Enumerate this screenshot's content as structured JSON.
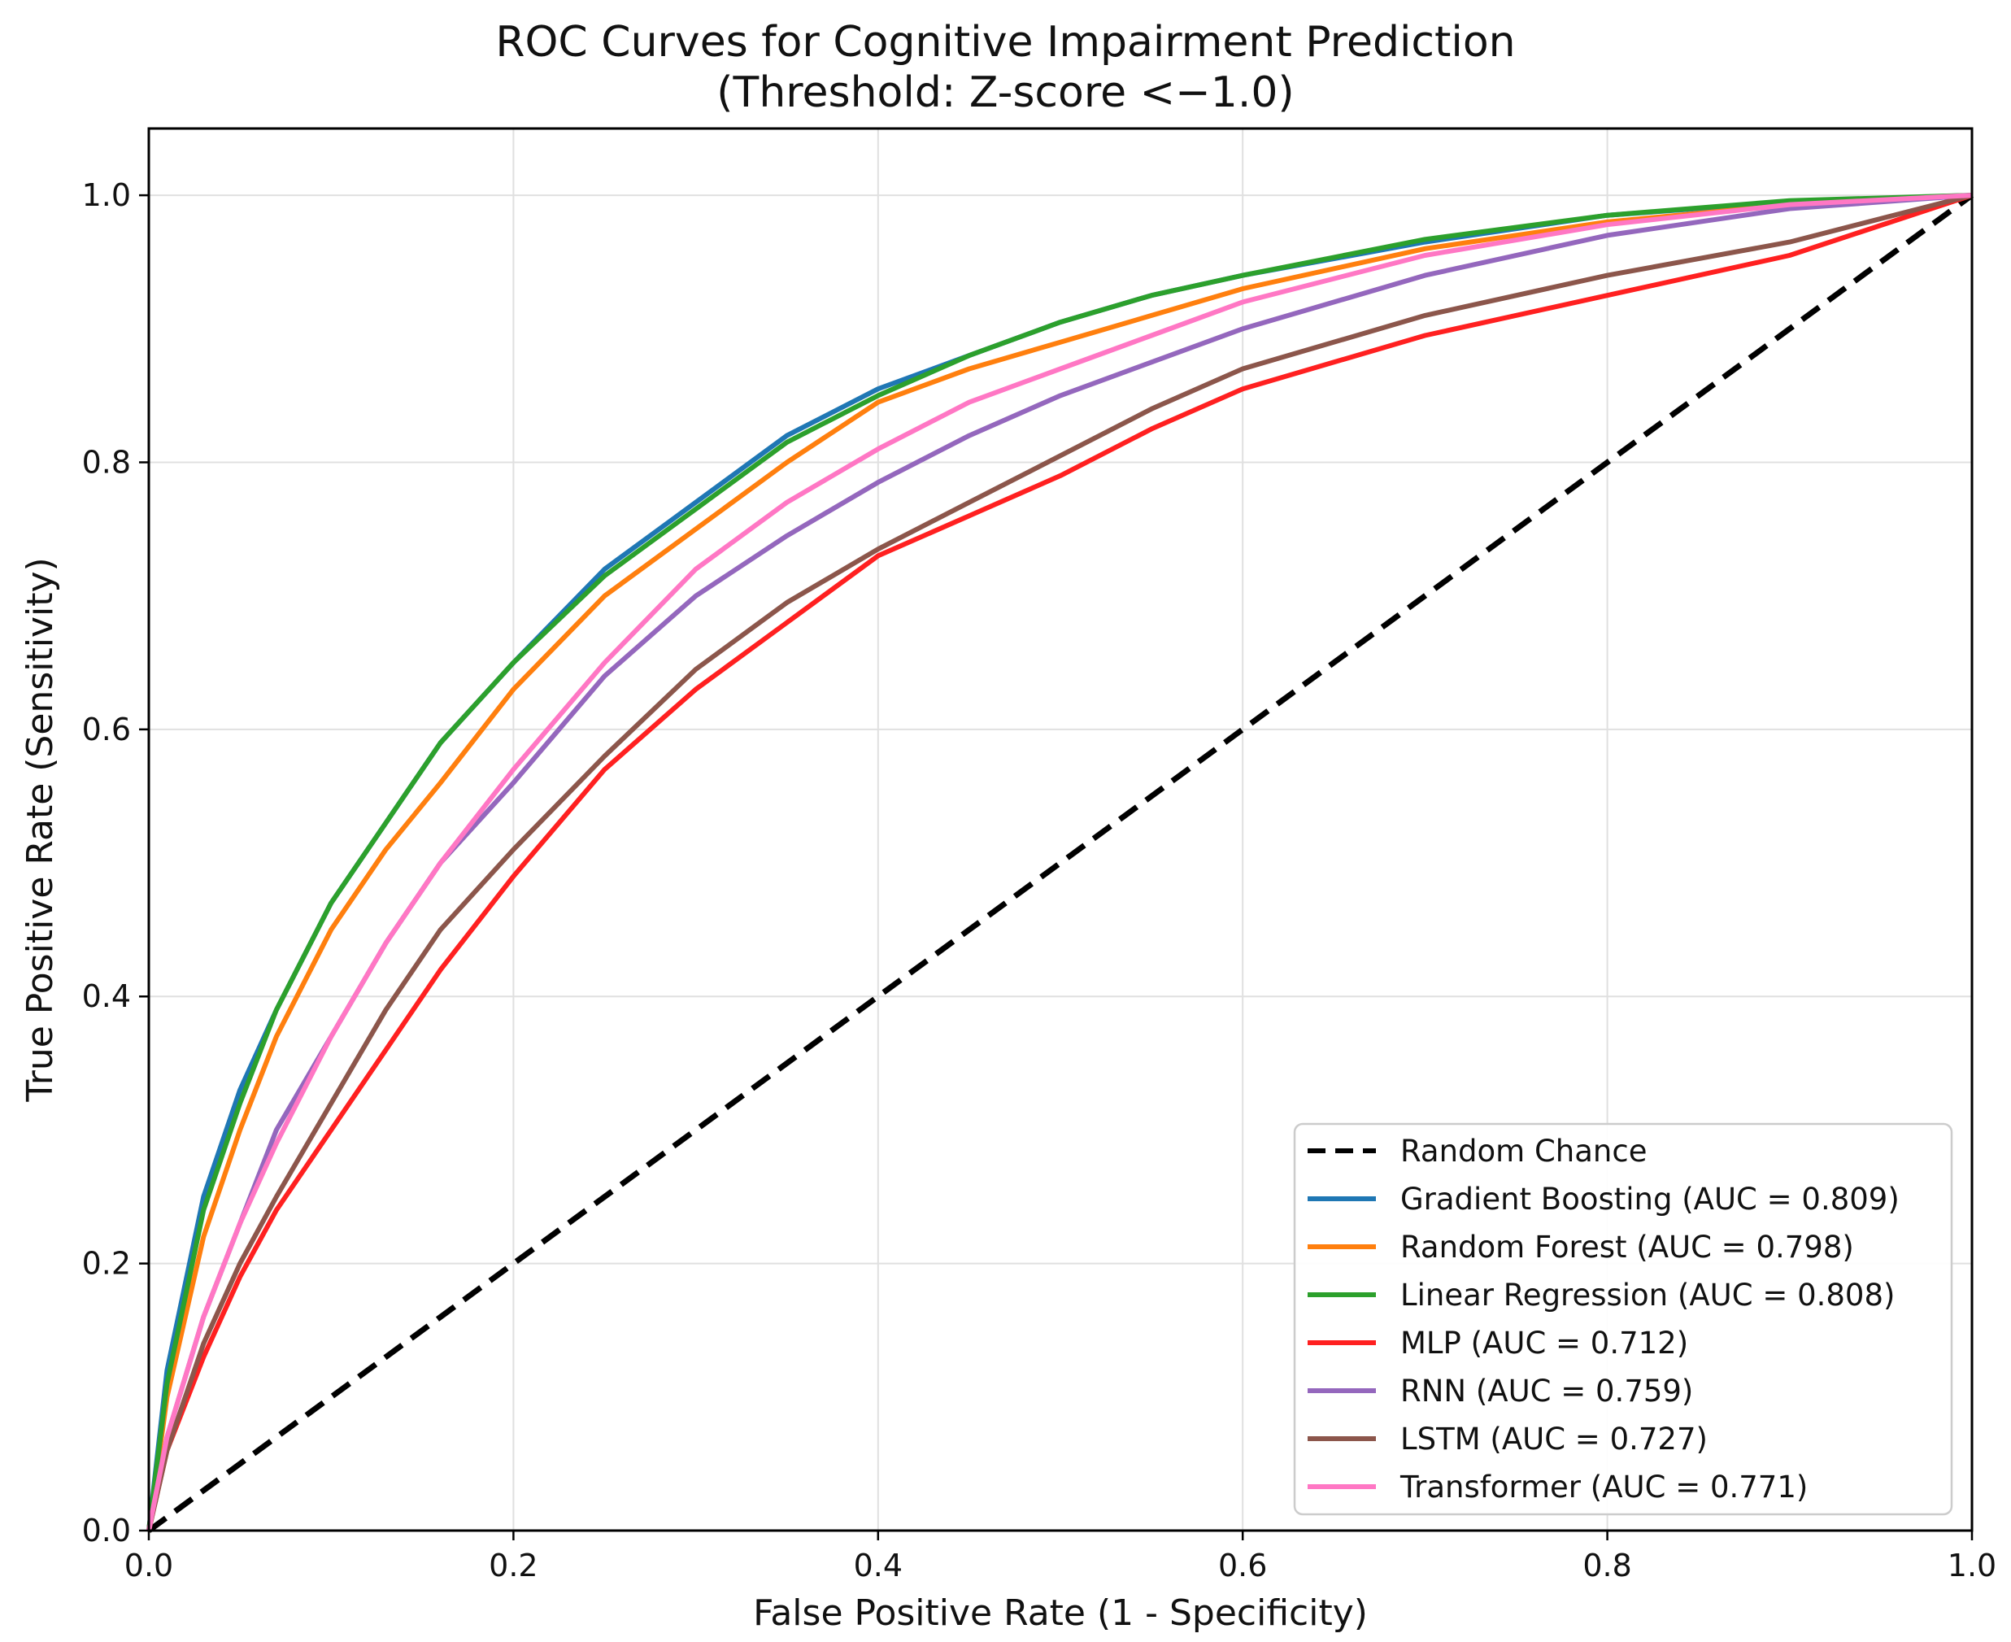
{
  "chart_data": {
    "type": "line",
    "title": "ROC Curves for Cognitive Impairment Prediction",
    "subtitle": "(Threshold: Z-score <−1.0)",
    "xlabel": "False Positive Rate (1 - Specificity)",
    "ylabel": "True Positive Rate (Sensitivity)",
    "xlim": [
      0,
      1
    ],
    "ylim": [
      0,
      1.05
    ],
    "xticks": [
      "0.0",
      "0.2",
      "0.4",
      "0.6",
      "0.8",
      "1.0"
    ],
    "yticks": [
      "0.0",
      "0.2",
      "0.4",
      "0.6",
      "0.8",
      "1.0"
    ],
    "grid": true,
    "legend_position": "lower-right",
    "series": [
      {
        "name": "Random Chance",
        "color": "#000000",
        "dashed": true,
        "x": [
          0,
          1
        ],
        "y": [
          0,
          1
        ]
      },
      {
        "name": "Gradient Boosting (AUC = 0.809)",
        "color": "#1f77b4",
        "x": [
          0,
          0.01,
          0.03,
          0.05,
          0.07,
          0.1,
          0.13,
          0.16,
          0.2,
          0.25,
          0.3,
          0.35,
          0.4,
          0.45,
          0.5,
          0.55,
          0.6,
          0.7,
          0.8,
          0.9,
          1.0
        ],
        "y": [
          0,
          0.12,
          0.25,
          0.33,
          0.39,
          0.47,
          0.53,
          0.59,
          0.65,
          0.72,
          0.77,
          0.82,
          0.855,
          0.88,
          0.905,
          0.925,
          0.94,
          0.965,
          0.985,
          0.995,
          1.0
        ]
      },
      {
        "name": "Random Forest (AUC = 0.798)",
        "color": "#ff7f0e",
        "x": [
          0,
          0.01,
          0.03,
          0.05,
          0.07,
          0.1,
          0.13,
          0.16,
          0.2,
          0.25,
          0.3,
          0.35,
          0.4,
          0.45,
          0.5,
          0.55,
          0.6,
          0.7,
          0.8,
          0.9,
          1.0
        ],
        "y": [
          0,
          0.1,
          0.22,
          0.3,
          0.37,
          0.45,
          0.51,
          0.56,
          0.63,
          0.7,
          0.75,
          0.8,
          0.845,
          0.87,
          0.89,
          0.91,
          0.93,
          0.96,
          0.98,
          0.993,
          1.0
        ]
      },
      {
        "name": "Linear Regression (AUC = 0.808)",
        "color": "#2ca02c",
        "x": [
          0,
          0.01,
          0.03,
          0.05,
          0.07,
          0.1,
          0.13,
          0.16,
          0.2,
          0.25,
          0.3,
          0.35,
          0.4,
          0.45,
          0.5,
          0.55,
          0.6,
          0.7,
          0.8,
          0.9,
          1.0
        ],
        "y": [
          0,
          0.11,
          0.24,
          0.32,
          0.39,
          0.47,
          0.53,
          0.59,
          0.65,
          0.715,
          0.765,
          0.815,
          0.85,
          0.88,
          0.905,
          0.925,
          0.94,
          0.967,
          0.985,
          0.996,
          1.0
        ]
      },
      {
        "name": "MLP (AUC = 0.712)",
        "color": "#ff2020",
        "x": [
          0,
          0.01,
          0.03,
          0.05,
          0.07,
          0.1,
          0.13,
          0.16,
          0.2,
          0.25,
          0.3,
          0.35,
          0.4,
          0.45,
          0.5,
          0.55,
          0.6,
          0.7,
          0.8,
          0.9,
          1.0
        ],
        "y": [
          0,
          0.06,
          0.13,
          0.19,
          0.24,
          0.3,
          0.36,
          0.42,
          0.49,
          0.57,
          0.63,
          0.68,
          0.73,
          0.76,
          0.79,
          0.825,
          0.855,
          0.895,
          0.925,
          0.955,
          1.0
        ]
      },
      {
        "name": "RNN (AUC = 0.759)",
        "color": "#9467bd",
        "x": [
          0,
          0.01,
          0.03,
          0.05,
          0.07,
          0.1,
          0.13,
          0.16,
          0.2,
          0.25,
          0.3,
          0.35,
          0.4,
          0.45,
          0.5,
          0.55,
          0.6,
          0.7,
          0.8,
          0.9,
          1.0
        ],
        "y": [
          0,
          0.07,
          0.16,
          0.23,
          0.3,
          0.37,
          0.44,
          0.5,
          0.56,
          0.64,
          0.7,
          0.745,
          0.785,
          0.82,
          0.85,
          0.875,
          0.9,
          0.94,
          0.97,
          0.99,
          1.0
        ]
      },
      {
        "name": "LSTM (AUC = 0.727)",
        "color": "#8c564b",
        "x": [
          0,
          0.01,
          0.03,
          0.05,
          0.07,
          0.1,
          0.13,
          0.16,
          0.2,
          0.25,
          0.3,
          0.35,
          0.4,
          0.45,
          0.5,
          0.55,
          0.6,
          0.7,
          0.8,
          0.9,
          1.0
        ],
        "y": [
          0,
          0.06,
          0.14,
          0.2,
          0.25,
          0.32,
          0.39,
          0.45,
          0.51,
          0.58,
          0.645,
          0.695,
          0.735,
          0.77,
          0.805,
          0.84,
          0.87,
          0.91,
          0.94,
          0.965,
          1.0
        ]
      },
      {
        "name": "Transformer (AUC = 0.771)",
        "color": "#ff77c4",
        "x": [
          0,
          0.01,
          0.03,
          0.05,
          0.07,
          0.1,
          0.13,
          0.16,
          0.2,
          0.25,
          0.3,
          0.35,
          0.4,
          0.45,
          0.5,
          0.55,
          0.6,
          0.7,
          0.8,
          0.9,
          1.0
        ],
        "y": [
          0,
          0.07,
          0.16,
          0.23,
          0.29,
          0.37,
          0.44,
          0.5,
          0.57,
          0.65,
          0.72,
          0.77,
          0.81,
          0.845,
          0.87,
          0.895,
          0.92,
          0.955,
          0.978,
          0.993,
          1.0
        ]
      }
    ]
  }
}
